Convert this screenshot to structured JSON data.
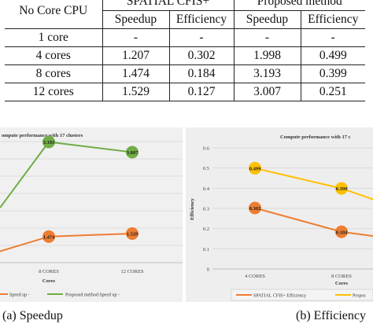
{
  "table": {
    "corner_header": "No Core CPU",
    "group_headers": [
      "SPATIAL CFIS+",
      "Proposed method"
    ],
    "sub_headers": [
      "Speedup",
      "Efficiency",
      "Speedup",
      "Efficiency"
    ],
    "rows": [
      {
        "label": "1 core",
        "cells": [
          "-",
          "-",
          "-",
          "-"
        ]
      },
      {
        "label": "4 cores",
        "cells": [
          "1.207",
          "0.302",
          "1.998",
          "0.499"
        ]
      },
      {
        "label": "8 cores",
        "cells": [
          "1.474",
          "0.184",
          "3.193",
          "0.399"
        ]
      },
      {
        "label": "12 cores",
        "cells": [
          "1.529",
          "0.127",
          "3.007",
          "0.251"
        ]
      }
    ]
  },
  "chart_data": [
    {
      "type": "line",
      "title": "ompute performance with 17 clusters",
      "xlabel": "Cores",
      "ylabel": "",
      "categories": [
        "8 CORES",
        "12 CORES"
      ],
      "series": [
        {
          "name": "Speed up -",
          "color": "#ed7d31",
          "values": [
            1.474,
            1.529
          ],
          "labels": [
            "1.474",
            "1.529"
          ]
        },
        {
          "name": "Proposed method Speed up -",
          "color": "#70ad47",
          "values": [
            3.193,
            3.007
          ],
          "labels": [
            "3.193",
            "3.007"
          ]
        }
      ],
      "legend_position": "bottom",
      "grid": true
    },
    {
      "type": "line",
      "title": "Compute performance with 17 c",
      "xlabel": "Cores",
      "ylabel": "Efficiency",
      "categories": [
        "4 CORES",
        "8 CORES"
      ],
      "yticks": [
        "0",
        "0.1",
        "0.2",
        "0.3",
        "0.4",
        "0.5",
        "0.6"
      ],
      "ylim": [
        0,
        0.6
      ],
      "series": [
        {
          "name": "SPATIAL CFIS+ Efficiency",
          "color": "#ed7d31",
          "values": [
            0.302,
            0.184
          ],
          "labels": [
            "0.302",
            "0.184"
          ]
        },
        {
          "name": "Propos",
          "color": "#ffc000",
          "values": [
            0.499,
            0.399
          ],
          "labels": [
            "0.499",
            "0.399"
          ]
        }
      ],
      "legend_position": "bottom",
      "grid": true
    }
  ],
  "captions": {
    "a": "(a) Speedup",
    "b": "(b) Efficiency"
  }
}
